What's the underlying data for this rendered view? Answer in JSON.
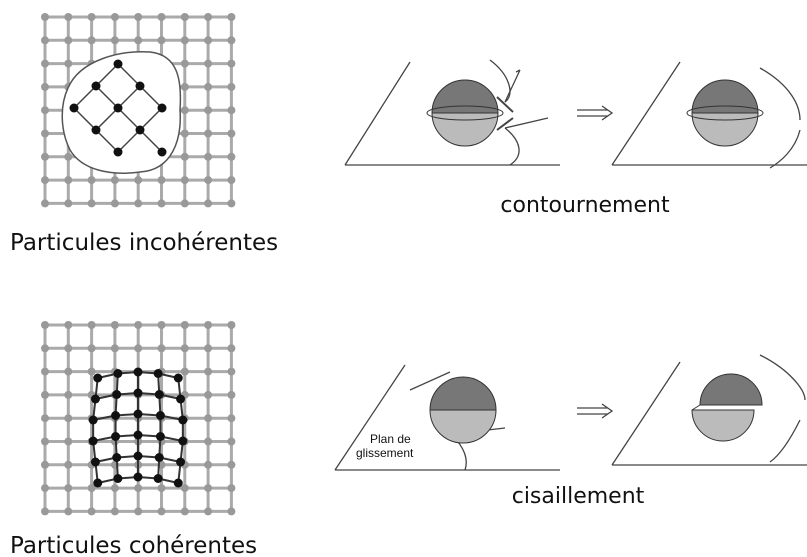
{
  "panels": [
    {
      "label": "Particules incohérentes",
      "mechanism": "contournement"
    },
    {
      "label": "Particules cohérentes",
      "mechanism": "cisaillement",
      "plane_label": [
        "Plan de",
        "glissement"
      ]
    }
  ]
}
